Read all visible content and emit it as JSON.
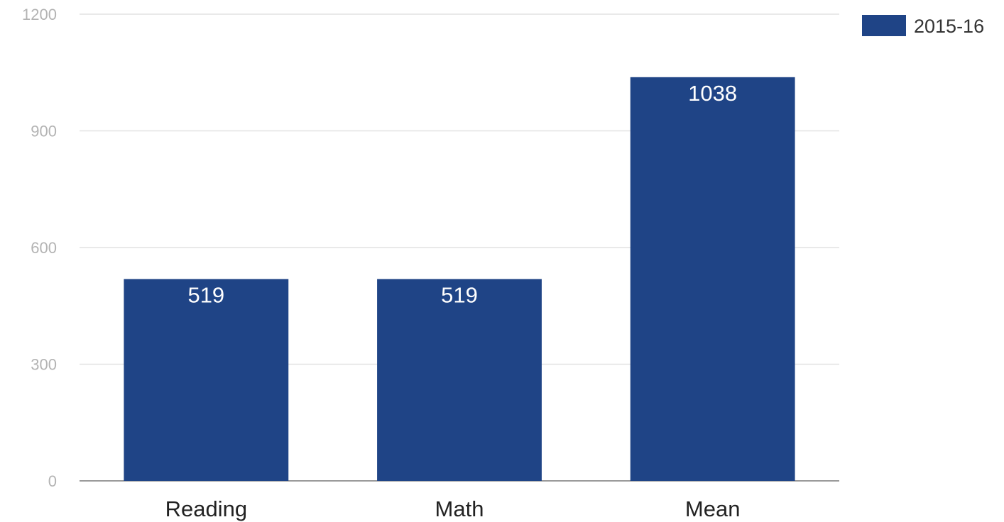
{
  "chart_data": {
    "type": "bar",
    "categories": [
      "Reading",
      "Math",
      "Mean"
    ],
    "series": [
      {
        "name": "2015-16",
        "values": [
          519,
          519,
          1038
        ],
        "data_labels": [
          "519",
          "519",
          "1038"
        ]
      }
    ],
    "ylim": [
      0,
      1200
    ],
    "yticks": [
      0,
      300,
      600,
      900,
      1200
    ],
    "ytick_labels": [
      "0",
      "300",
      "600",
      "900",
      "1200"
    ],
    "grid": true,
    "legend_position": "top-right",
    "bar_color": "#1f4486",
    "title": "",
    "xlabel": "",
    "ylabel": ""
  }
}
